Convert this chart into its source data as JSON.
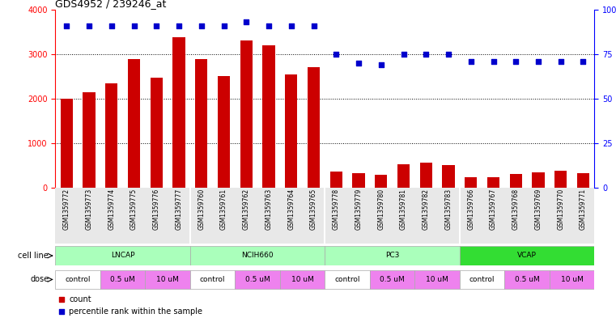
{
  "title": "GDS4952 / 239246_at",
  "samples": [
    "GSM1359772",
    "GSM1359773",
    "GSM1359774",
    "GSM1359775",
    "GSM1359776",
    "GSM1359777",
    "GSM1359760",
    "GSM1359761",
    "GSM1359762",
    "GSM1359763",
    "GSM1359764",
    "GSM1359765",
    "GSM1359778",
    "GSM1359779",
    "GSM1359780",
    "GSM1359781",
    "GSM1359782",
    "GSM1359783",
    "GSM1359766",
    "GSM1359767",
    "GSM1359768",
    "GSM1359769",
    "GSM1359770",
    "GSM1359771"
  ],
  "counts": [
    2000,
    2150,
    2350,
    2880,
    2470,
    3380,
    2880,
    2500,
    3300,
    3200,
    2540,
    2700,
    370,
    320,
    290,
    530,
    560,
    510,
    230,
    240,
    300,
    350,
    380,
    330
  ],
  "percentile_ranks": [
    91,
    91,
    91,
    91,
    91,
    91,
    91,
    91,
    93,
    91,
    91,
    91,
    75,
    70,
    69,
    75,
    75,
    75,
    71,
    71,
    71,
    71,
    71,
    71
  ],
  "cell_line_data": [
    {
      "name": "LNCAP",
      "start": 0,
      "end": 6,
      "color": "#AAFFBB"
    },
    {
      "name": "NCIH660",
      "start": 6,
      "end": 12,
      "color": "#AAFFBB"
    },
    {
      "name": "PC3",
      "start": 12,
      "end": 18,
      "color": "#AAFFBB"
    },
    {
      "name": "VCAP",
      "start": 18,
      "end": 24,
      "color": "#33DD33"
    }
  ],
  "dose_data": [
    {
      "label": "control",
      "start": 0,
      "end": 2,
      "color": "#FFFFFF"
    },
    {
      "label": "0.5 uM",
      "start": 2,
      "end": 4,
      "color": "#EE82EE"
    },
    {
      "label": "10 uM",
      "start": 4,
      "end": 6,
      "color": "#EE82EE"
    },
    {
      "label": "control",
      "start": 6,
      "end": 8,
      "color": "#FFFFFF"
    },
    {
      "label": "0.5 uM",
      "start": 8,
      "end": 10,
      "color": "#EE82EE"
    },
    {
      "label": "10 uM",
      "start": 10,
      "end": 12,
      "color": "#EE82EE"
    },
    {
      "label": "control",
      "start": 12,
      "end": 14,
      "color": "#FFFFFF"
    },
    {
      "label": "0.5 uM",
      "start": 14,
      "end": 16,
      "color": "#EE82EE"
    },
    {
      "label": "10 uM",
      "start": 16,
      "end": 18,
      "color": "#EE82EE"
    },
    {
      "label": "control",
      "start": 18,
      "end": 20,
      "color": "#FFFFFF"
    },
    {
      "label": "0.5 uM",
      "start": 20,
      "end": 22,
      "color": "#EE82EE"
    },
    {
      "label": "10 uM",
      "start": 22,
      "end": 24,
      "color": "#EE82EE"
    }
  ],
  "bar_color": "#CC0000",
  "dot_color": "#0000CC",
  "ylim_left": [
    0,
    4000
  ],
  "ylim_right": [
    0,
    100
  ],
  "yticks_left": [
    0,
    1000,
    2000,
    3000,
    4000
  ],
  "yticks_right": [
    0,
    25,
    50,
    75,
    100
  ],
  "background_color": "#FFFFFF",
  "chart_bg": "#FFFFFF"
}
